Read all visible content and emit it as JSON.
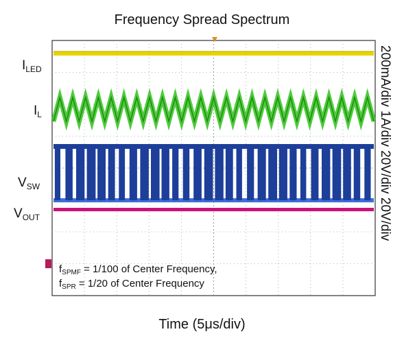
{
  "chart_data": {
    "type": "line",
    "title": "Frequency Spread Spectrum",
    "xlabel": "Time (5μs/div)",
    "x_divisions": 10,
    "y_divisions": 8,
    "channel_scales_label": "200mA/div 1A/div 20V/div 20V/div",
    "channel_scales": [
      "200mA/div",
      "1A/div",
      "20V/div",
      "20V/div"
    ],
    "grid": true,
    "series": [
      {
        "name": "I",
        "sub": "LED",
        "color": "#e8d400",
        "shape": "flat"
      },
      {
        "name": "I",
        "sub": "L",
        "color": "#2fc21a",
        "shape": "triangle"
      },
      {
        "name": "V",
        "sub": "SW",
        "color": "#1d3f9a",
        "shape": "square"
      },
      {
        "name": "V",
        "sub": "OUT",
        "color": "#c8127a",
        "shape": "flat"
      }
    ],
    "annotations": [
      {
        "symbol": "f",
        "sub": "SPMF",
        "text": " = 1/100 of Center Frequency,"
      },
      {
        "symbol": "f",
        "sub": "SPR",
        "text": " = 1/20 of Center Frequency"
      }
    ]
  }
}
